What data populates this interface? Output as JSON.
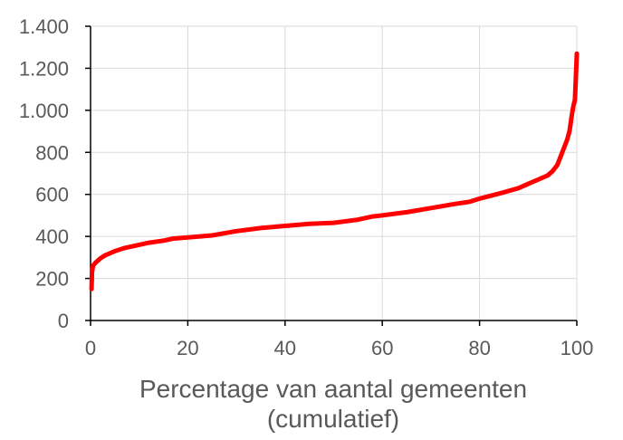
{
  "chart_data": {
    "type": "line",
    "xlabel": [
      "Percentage van aantal gemeenten",
      "(cumulatief)"
    ],
    "ylabel": "",
    "xlim": [
      0,
      100
    ],
    "ylim": [
      0,
      1400
    ],
    "x_ticks": [
      0,
      20,
      40,
      60,
      80,
      100
    ],
    "y_ticks": [
      0,
      200,
      400,
      600,
      800,
      1000,
      1200,
      1400
    ],
    "x_tick_labels": [
      "0",
      "20",
      "40",
      "60",
      "80",
      "100"
    ],
    "y_tick_labels": [
      "0",
      "200",
      "400",
      "600",
      "800",
      "1.000",
      "1.200",
      "1.400"
    ],
    "grid": true,
    "legend": "none",
    "colors": {
      "line": "#ff0000",
      "grid": "#d9d9d9",
      "text": "#595959"
    },
    "series": [
      {
        "x": [
          0.2,
          0.3,
          0.5,
          1,
          2,
          3,
          5,
          7,
          10,
          12,
          15,
          17,
          20,
          25,
          30,
          35,
          40,
          45,
          50,
          55,
          58,
          60,
          65,
          70,
          75,
          78,
          80,
          85,
          88,
          90,
          92,
          94,
          95,
          96,
          97,
          98,
          98.5,
          99,
          99.3,
          99.6,
          99.8,
          100
        ],
        "y": [
          150,
          230,
          260,
          275,
          295,
          310,
          330,
          345,
          360,
          370,
          380,
          390,
          395,
          405,
          425,
          440,
          450,
          460,
          465,
          480,
          495,
          500,
          515,
          535,
          555,
          565,
          580,
          610,
          630,
          650,
          670,
          690,
          710,
          740,
          800,
          860,
          900,
          980,
          1020,
          1050,
          1150,
          1270
        ]
      }
    ]
  }
}
